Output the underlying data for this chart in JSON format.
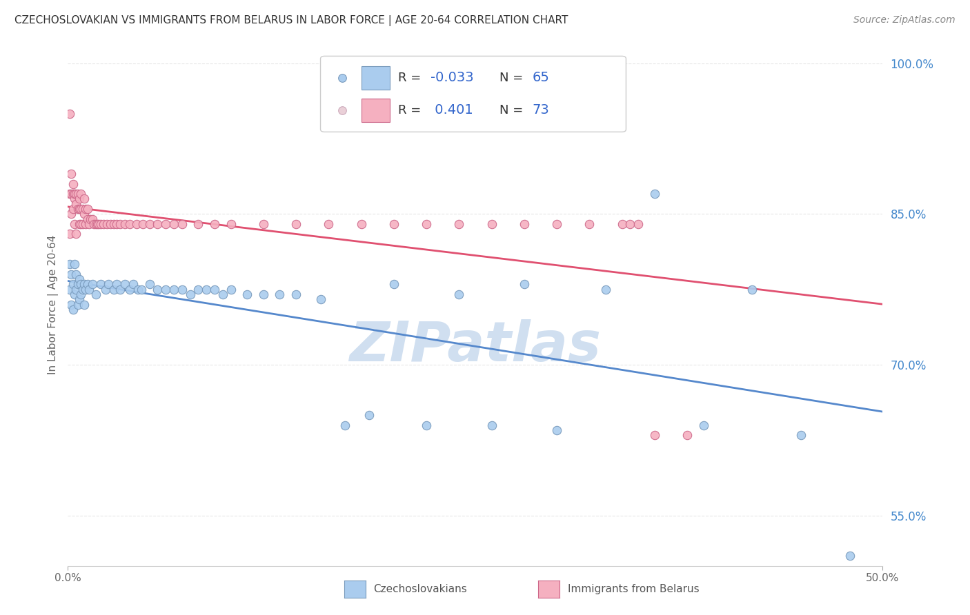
{
  "title": "CZECHOSLOVAKIAN VS IMMIGRANTS FROM BELARUS IN LABOR FORCE | AGE 20-64 CORRELATION CHART",
  "source": "Source: ZipAtlas.com",
  "ylabel": "In Labor Force | Age 20-64",
  "xlim": [
    0.0,
    0.5
  ],
  "ylim": [
    0.5,
    1.02
  ],
  "ytick_labels": [
    "100.0%",
    "85.0%",
    "70.0%",
    "55.0%"
  ],
  "ytick_values": [
    1.0,
    0.85,
    0.7,
    0.55
  ],
  "xtick_labels": [
    "0.0%",
    "50.0%"
  ],
  "xtick_values": [
    0.0,
    0.5
  ],
  "line_blue_color": "#5588cc",
  "line_pink_color": "#e05070",
  "scatter_blue_color": "#aaccee",
  "scatter_pink_color": "#f5b0c0",
  "scatter_blue_edge": "#7799bb",
  "scatter_pink_edge": "#cc6688",
  "watermark_color": "#d0dff0",
  "background_color": "#ffffff",
  "grid_color": "#dddddd",
  "blue_R": "-0.033",
  "blue_N": "65",
  "pink_R": "0.401",
  "pink_N": "73",
  "blue_points_x": [
    0.001,
    0.001,
    0.002,
    0.002,
    0.003,
    0.003,
    0.004,
    0.004,
    0.005,
    0.005,
    0.006,
    0.006,
    0.007,
    0.007,
    0.008,
    0.008,
    0.009,
    0.01,
    0.01,
    0.011,
    0.012,
    0.013,
    0.015,
    0.017,
    0.02,
    0.023,
    0.025,
    0.028,
    0.03,
    0.032,
    0.035,
    0.038,
    0.04,
    0.043,
    0.045,
    0.05,
    0.055,
    0.06,
    0.065,
    0.07,
    0.075,
    0.08,
    0.085,
    0.09,
    0.095,
    0.1,
    0.11,
    0.12,
    0.13,
    0.14,
    0.155,
    0.17,
    0.185,
    0.2,
    0.22,
    0.24,
    0.26,
    0.28,
    0.3,
    0.33,
    0.36,
    0.39,
    0.42,
    0.45,
    0.48
  ],
  "blue_points_y": [
    0.8,
    0.775,
    0.79,
    0.76,
    0.78,
    0.755,
    0.8,
    0.77,
    0.775,
    0.79,
    0.78,
    0.76,
    0.785,
    0.765,
    0.78,
    0.77,
    0.775,
    0.78,
    0.76,
    0.775,
    0.78,
    0.775,
    0.78,
    0.77,
    0.78,
    0.775,
    0.78,
    0.775,
    0.78,
    0.775,
    0.78,
    0.775,
    0.78,
    0.775,
    0.775,
    0.78,
    0.775,
    0.775,
    0.775,
    0.775,
    0.77,
    0.775,
    0.775,
    0.775,
    0.77,
    0.775,
    0.77,
    0.77,
    0.77,
    0.77,
    0.765,
    0.64,
    0.65,
    0.78,
    0.64,
    0.77,
    0.64,
    0.78,
    0.635,
    0.775,
    0.87,
    0.64,
    0.775,
    0.63,
    0.51
  ],
  "pink_points_x": [
    0.001,
    0.001,
    0.001,
    0.002,
    0.002,
    0.002,
    0.003,
    0.003,
    0.003,
    0.004,
    0.004,
    0.004,
    0.005,
    0.005,
    0.005,
    0.006,
    0.006,
    0.007,
    0.007,
    0.007,
    0.008,
    0.008,
    0.008,
    0.009,
    0.009,
    0.01,
    0.01,
    0.011,
    0.011,
    0.012,
    0.012,
    0.013,
    0.014,
    0.015,
    0.016,
    0.017,
    0.018,
    0.019,
    0.02,
    0.022,
    0.024,
    0.026,
    0.028,
    0.03,
    0.032,
    0.035,
    0.038,
    0.042,
    0.046,
    0.05,
    0.055,
    0.06,
    0.065,
    0.07,
    0.08,
    0.09,
    0.1,
    0.12,
    0.14,
    0.16,
    0.18,
    0.2,
    0.22,
    0.24,
    0.26,
    0.28,
    0.3,
    0.32,
    0.34,
    0.345,
    0.35,
    0.36,
    0.38
  ],
  "pink_points_y": [
    0.87,
    0.83,
    0.95,
    0.87,
    0.85,
    0.89,
    0.88,
    0.855,
    0.87,
    0.865,
    0.87,
    0.84,
    0.86,
    0.83,
    0.87,
    0.855,
    0.87,
    0.84,
    0.855,
    0.865,
    0.84,
    0.855,
    0.87,
    0.84,
    0.855,
    0.85,
    0.865,
    0.84,
    0.855,
    0.845,
    0.855,
    0.84,
    0.845,
    0.845,
    0.84,
    0.84,
    0.84,
    0.84,
    0.84,
    0.84,
    0.84,
    0.84,
    0.84,
    0.84,
    0.84,
    0.84,
    0.84,
    0.84,
    0.84,
    0.84,
    0.84,
    0.84,
    0.84,
    0.84,
    0.84,
    0.84,
    0.84,
    0.84,
    0.84,
    0.84,
    0.84,
    0.84,
    0.84,
    0.84,
    0.84,
    0.84,
    0.84,
    0.84,
    0.84,
    0.84,
    0.84,
    0.63,
    0.63
  ]
}
